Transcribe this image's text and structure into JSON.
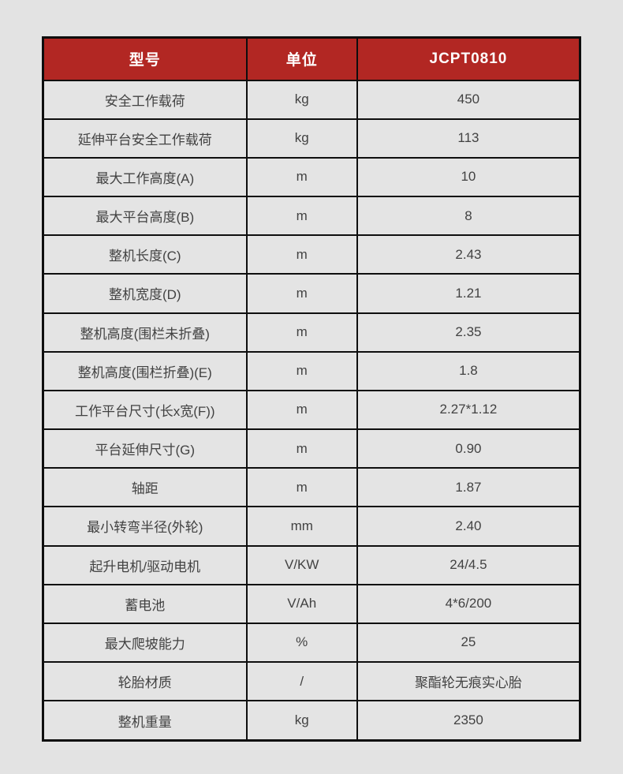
{
  "page": {
    "background_color": "#e3e3e3"
  },
  "table": {
    "accent_color": "#b22723",
    "border_color": "#0e0e0e",
    "header": {
      "model": "型号",
      "unit": "单位",
      "value": "JCPT0810"
    },
    "rows": [
      {
        "label": "安全工作载荷",
        "unit": "kg",
        "value": "450"
      },
      {
        "label": "延伸平台安全工作载荷",
        "unit": "kg",
        "value": "113"
      },
      {
        "label": "最大工作高度(A)",
        "unit": "m",
        "value": "10"
      },
      {
        "label": "最大平台高度(B)",
        "unit": "m",
        "value": "8"
      },
      {
        "label": "整机长度(C)",
        "unit": "m",
        "value": "2.43"
      },
      {
        "label": "整机宽度(D)",
        "unit": "m",
        "value": "1.21"
      },
      {
        "label": "整机高度(围栏未折叠)",
        "unit": "m",
        "value": "2.35"
      },
      {
        "label": "整机高度(围栏折叠)(E)",
        "unit": "m",
        "value": "1.8"
      },
      {
        "label": "工作平台尺寸(长x宽(F))",
        "unit": "m",
        "value": "2.27*1.12"
      },
      {
        "label": "平台延伸尺寸(G)",
        "unit": "m",
        "value": "0.90"
      },
      {
        "label": "轴距",
        "unit": "m",
        "value": "1.87"
      },
      {
        "label": "最小转弯半径(外轮)",
        "unit": "mm",
        "value": "2.40"
      },
      {
        "label": "起升电机/驱动电机",
        "unit": "V/KW",
        "value": "24/4.5"
      },
      {
        "label": "蓄电池",
        "unit": "V/Ah",
        "value": "4*6/200"
      },
      {
        "label": "最大爬坡能力",
        "unit": "%",
        "value": "25"
      },
      {
        "label": "轮胎材质",
        "unit": "/",
        "value": "聚酯轮无痕实心胎"
      },
      {
        "label": "整机重量",
        "unit": "kg",
        "value": "2350"
      }
    ]
  }
}
